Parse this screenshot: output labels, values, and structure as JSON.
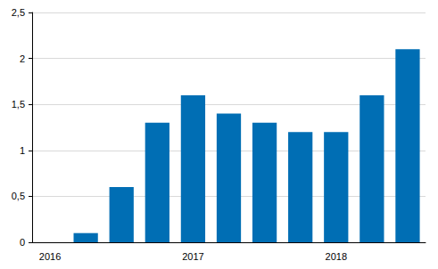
{
  "chart_data": {
    "type": "bar",
    "categories": [
      "2016",
      null,
      null,
      null,
      "2017",
      null,
      null,
      null,
      "2018",
      null,
      null
    ],
    "values": [
      0,
      0.1,
      0.6,
      1.3,
      1.6,
      1.4,
      1.3,
      1.2,
      1.2,
      1.6,
      2.1
    ],
    "color": "#006eb4",
    "ylim": [
      0,
      2.5
    ],
    "yticks": [
      0,
      {
        "value": 0.5,
        "label": "0,5"
      },
      1,
      {
        "value": 1.5,
        "label": "1,5"
      },
      2,
      {
        "value": 2.5,
        "label": "2,5"
      }
    ],
    "grid": true
  }
}
